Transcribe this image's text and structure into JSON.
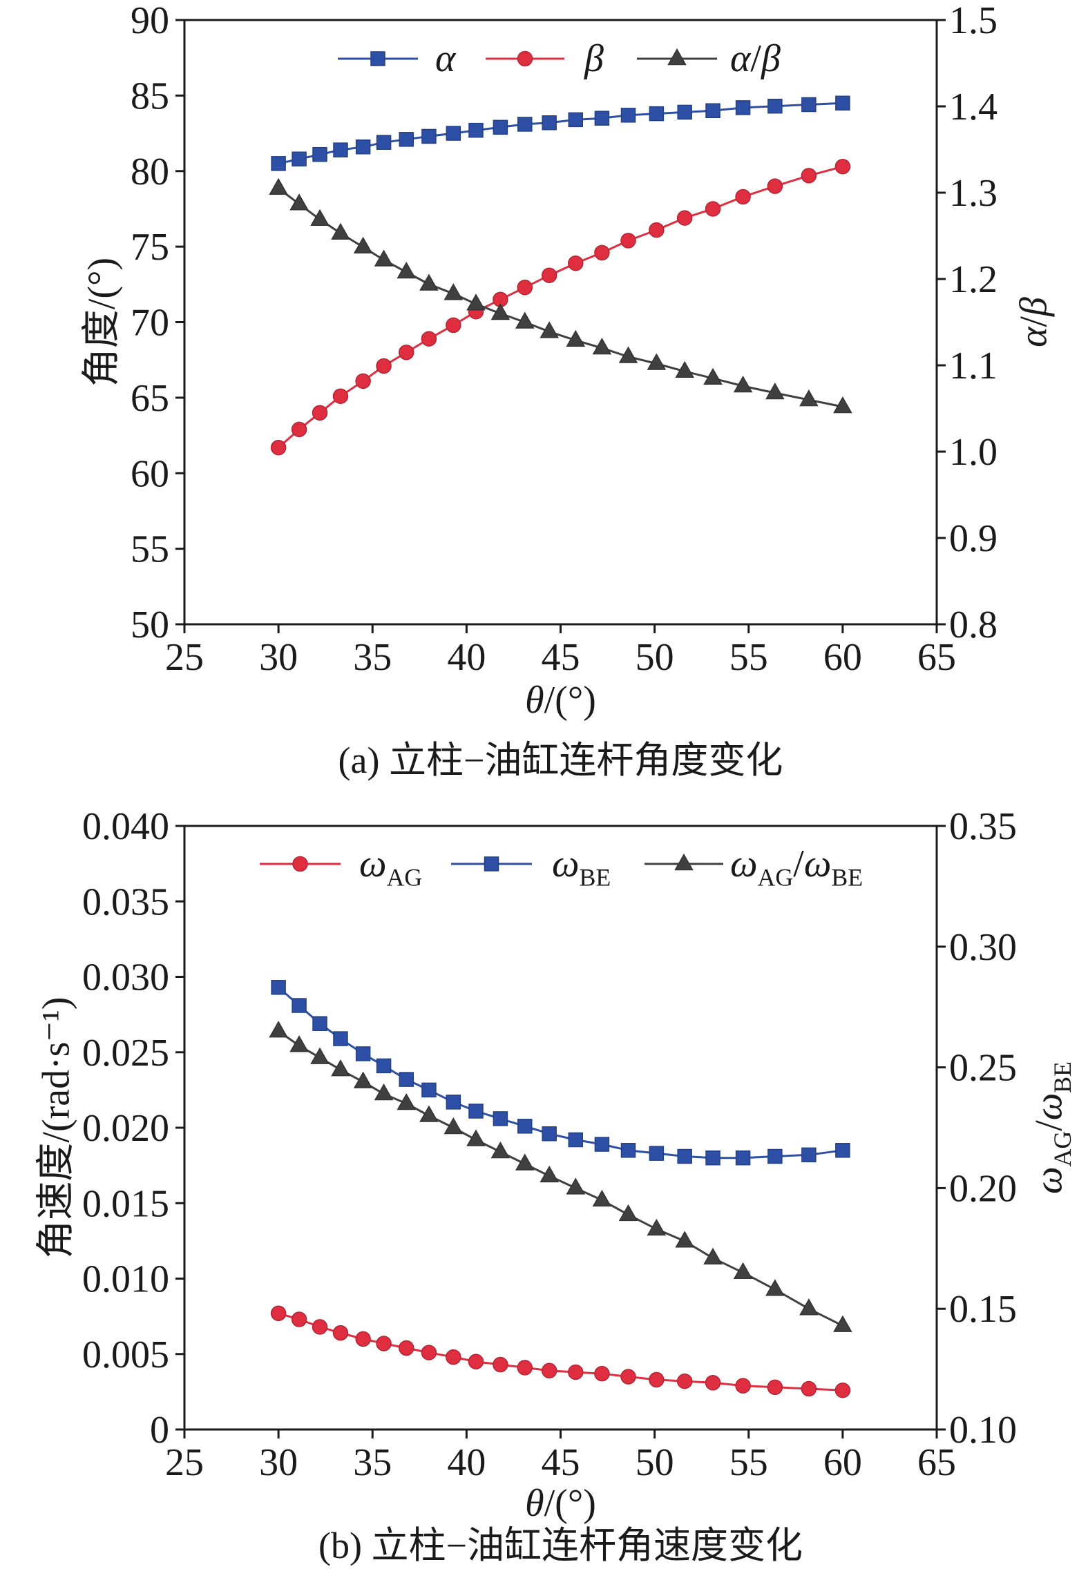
{
  "chart_data": [
    {
      "type": "line",
      "caption": "(a) 立柱−油缸连杆角度变化",
      "xlabel": "θ/(°)",
      "ylabel": "角度/(°)",
      "y2label": "α/β",
      "xlim": [
        25,
        65
      ],
      "ylim": [
        50,
        90
      ],
      "y2lim": [
        0.8,
        1.5
      ],
      "xticks": [
        "25",
        "30",
        "35",
        "40",
        "45",
        "50",
        "55",
        "60",
        "65"
      ],
      "yticks": [
        "50",
        "55",
        "60",
        "65",
        "70",
        "75",
        "80",
        "85",
        "90"
      ],
      "y2ticks": [
        "0.8",
        "0.9",
        "1.0",
        "1.1",
        "1.2",
        "1.3",
        "1.4",
        "1.5"
      ],
      "grid": false,
      "legend_position": "top",
      "x": [
        30.0,
        31.1,
        32.2,
        33.3,
        34.5,
        35.6,
        36.8,
        38.0,
        39.3,
        40.5,
        41.8,
        43.1,
        44.4,
        45.8,
        47.2,
        48.6,
        50.1,
        51.6,
        53.1,
        54.7,
        56.4,
        58.2,
        60.0
      ],
      "series": [
        {
          "name": "α",
          "axis": "left",
          "marker": "square",
          "color": "#2d50a6",
          "values": [
            80.5,
            80.8,
            81.1,
            81.4,
            81.6,
            81.9,
            82.1,
            82.3,
            82.5,
            82.7,
            82.9,
            83.1,
            83.2,
            83.4,
            83.5,
            83.7,
            83.8,
            83.9,
            84.0,
            84.2,
            84.3,
            84.4,
            84.5
          ]
        },
        {
          "name": "β",
          "axis": "left",
          "marker": "circle",
          "color": "#e02e41",
          "values": [
            61.7,
            62.9,
            64.0,
            65.1,
            66.1,
            67.1,
            68.0,
            68.9,
            69.8,
            70.7,
            71.5,
            72.3,
            73.1,
            73.9,
            74.6,
            75.4,
            76.1,
            76.9,
            77.5,
            78.3,
            79.0,
            79.7,
            80.3
          ]
        },
        {
          "name": "α/β",
          "axis": "right",
          "marker": "triangle",
          "color": "#404040",
          "values": [
            1.305,
            1.287,
            1.269,
            1.253,
            1.237,
            1.222,
            1.208,
            1.194,
            1.183,
            1.171,
            1.16,
            1.15,
            1.139,
            1.129,
            1.12,
            1.11,
            1.102,
            1.093,
            1.085,
            1.076,
            1.068,
            1.06,
            1.052
          ]
        }
      ]
    },
    {
      "type": "line",
      "caption": "(b) 立柱−油缸连杆角速度变化",
      "xlabel": "θ/(°)",
      "ylabel": "角速度/(rad·s⁻¹)",
      "y2label": "ωAG/ωBE",
      "xlim": [
        25,
        65
      ],
      "ylim": [
        0,
        0.04
      ],
      "y2lim": [
        0.1,
        0.35
      ],
      "xticks": [
        "25",
        "30",
        "35",
        "40",
        "45",
        "50",
        "55",
        "60",
        "65"
      ],
      "yticks": [
        "0",
        "0.005",
        "0.010",
        "0.015",
        "0.020",
        "0.025",
        "0.030",
        "0.035",
        "0.040"
      ],
      "y2ticks": [
        "0.10",
        "0.15",
        "0.20",
        "0.25",
        "0.30",
        "0.35"
      ],
      "grid": false,
      "legend_position": "top",
      "x": [
        30.0,
        31.1,
        32.2,
        33.3,
        34.5,
        35.6,
        36.8,
        38.0,
        39.3,
        40.5,
        41.8,
        43.1,
        44.4,
        45.8,
        47.2,
        48.6,
        50.1,
        51.6,
        53.1,
        54.7,
        56.4,
        58.2,
        60.0
      ],
      "series": [
        {
          "name": "ωAG",
          "axis": "left",
          "marker": "circle",
          "color": "#e02e41",
          "values": [
            0.0077,
            0.0073,
            0.0068,
            0.0064,
            0.006,
            0.0057,
            0.0054,
            0.0051,
            0.0048,
            0.0045,
            0.0043,
            0.0041,
            0.0039,
            0.0038,
            0.0037,
            0.0035,
            0.0033,
            0.0032,
            0.0031,
            0.0029,
            0.0028,
            0.0027,
            0.0026
          ]
        },
        {
          "name": "ωBE",
          "axis": "left",
          "marker": "square",
          "color": "#2d50a6",
          "values": [
            0.0293,
            0.0281,
            0.0269,
            0.0259,
            0.0249,
            0.0241,
            0.0232,
            0.0225,
            0.0217,
            0.0211,
            0.0206,
            0.0201,
            0.0196,
            0.0192,
            0.0189,
            0.0185,
            0.0183,
            0.0181,
            0.018,
            0.018,
            0.0181,
            0.0182,
            0.0185
          ]
        },
        {
          "name": "ωAG/ωBE",
          "axis": "right",
          "marker": "triangle",
          "color": "#404040",
          "values": [
            0.265,
            0.259,
            0.254,
            0.249,
            0.244,
            0.239,
            0.235,
            0.23,
            0.225,
            0.22,
            0.215,
            0.21,
            0.205,
            0.2,
            0.195,
            0.189,
            0.183,
            0.178,
            0.171,
            0.165,
            0.158,
            0.15,
            0.143
          ]
        }
      ]
    }
  ]
}
